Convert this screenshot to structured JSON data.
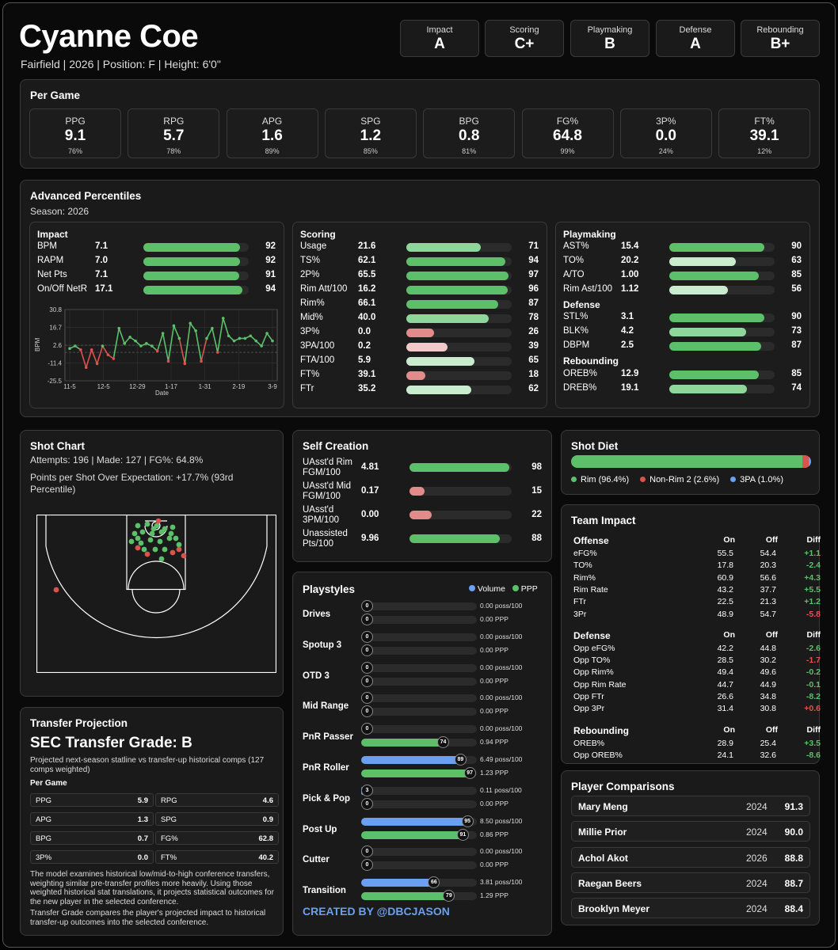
{
  "player": {
    "name": "Cyanne Coe",
    "meta": "Fairfield | 2026 | Position: F | Height: 6'0\""
  },
  "grades": [
    {
      "label": "Impact",
      "value": "A"
    },
    {
      "label": "Scoring",
      "value": "C+"
    },
    {
      "label": "Playmaking",
      "value": "B"
    },
    {
      "label": "Defense",
      "value": "A"
    },
    {
      "label": "Rebounding",
      "value": "B+"
    }
  ],
  "per_game": {
    "title": "Per Game",
    "stats": [
      {
        "label": "PPG",
        "value": "9.1",
        "pct": "76%"
      },
      {
        "label": "RPG",
        "value": "5.7",
        "pct": "78%"
      },
      {
        "label": "APG",
        "value": "1.6",
        "pct": "89%"
      },
      {
        "label": "SPG",
        "value": "1.2",
        "pct": "85%"
      },
      {
        "label": "BPG",
        "value": "0.8",
        "pct": "81%"
      },
      {
        "label": "FG%",
        "value": "64.8",
        "pct": "99%"
      },
      {
        "label": "3P%",
        "value": "0.0",
        "pct": "24%"
      },
      {
        "label": "FT%",
        "value": "39.1",
        "pct": "12%"
      }
    ]
  },
  "advanced": {
    "title": "Advanced Percentiles",
    "season": "Season: 2026",
    "impact": {
      "title": "Impact",
      "rows": [
        {
          "label": "BPM",
          "value": "7.1",
          "pct": 92
        },
        {
          "label": "RAPM",
          "value": "7.0",
          "pct": 92
        },
        {
          "label": "Net Pts",
          "value": "7.1",
          "pct": 91
        },
        {
          "label": "On/Off NetR",
          "value": "17.1",
          "pct": 94
        }
      ]
    },
    "scoring": {
      "title": "Scoring",
      "rows": [
        {
          "label": "Usage",
          "value": "21.6",
          "pct": 71
        },
        {
          "label": "TS%",
          "value": "62.1",
          "pct": 94
        },
        {
          "label": "2P%",
          "value": "65.5",
          "pct": 97
        },
        {
          "label": "Rim Att/100",
          "value": "16.2",
          "pct": 96
        },
        {
          "label": "Rim%",
          "value": "66.1",
          "pct": 87
        },
        {
          "label": "Mid%",
          "value": "40.0",
          "pct": 78
        },
        {
          "label": "3P%",
          "value": "0.0",
          "pct": 26
        },
        {
          "label": "3PA/100",
          "value": "0.2",
          "pct": 39
        },
        {
          "label": "FTA/100",
          "value": "5.9",
          "pct": 65
        },
        {
          "label": "FT%",
          "value": "39.1",
          "pct": 18
        },
        {
          "label": "FTr",
          "value": "35.2",
          "pct": 62
        }
      ]
    },
    "playmaking": {
      "title": "Playmaking",
      "rows": [
        {
          "label": "AST%",
          "value": "15.4",
          "pct": 90
        },
        {
          "label": "TO%",
          "value": "20.2",
          "pct": 63
        },
        {
          "label": "A/TO",
          "value": "1.00",
          "pct": 85
        },
        {
          "label": "Rim Ast/100",
          "value": "1.12",
          "pct": 56
        }
      ]
    },
    "defense": {
      "title": "Defense",
      "rows": [
        {
          "label": "STL%",
          "value": "3.1",
          "pct": 90
        },
        {
          "label": "BLK%",
          "value": "4.2",
          "pct": 73
        },
        {
          "label": "DBPM",
          "value": "2.5",
          "pct": 87
        }
      ]
    },
    "rebounding": {
      "title": "Rebounding",
      "rows": [
        {
          "label": "OREB%",
          "value": "12.9",
          "pct": 85
        },
        {
          "label": "DREB%",
          "value": "19.1",
          "pct": 74
        }
      ]
    }
  },
  "chart_data": {
    "type": "line",
    "xlabel": "Date",
    "ylabel": "BPM",
    "yticks": [
      "30.8",
      "16.7",
      "2.6",
      "-11.4",
      "-25.5"
    ],
    "xticks": [
      "11-5",
      "12-5",
      "12-29",
      "1-17",
      "1-31",
      "2-19",
      "3-9"
    ],
    "ylim": [
      -25.5,
      30.8
    ],
    "values": [
      0,
      2,
      -1,
      -15,
      -1,
      -12,
      2,
      -5,
      -8,
      16,
      4,
      9,
      6,
      2,
      4,
      2,
      -2,
      12,
      -10,
      18,
      8,
      -12,
      20,
      14,
      -10,
      8,
      16,
      -3,
      24,
      10,
      6,
      8,
      8,
      10,
      6,
      2,
      12,
      6
    ],
    "colors": {
      "pos": "#5cbf6a",
      "neg": "#d9534f"
    }
  },
  "shot_chart": {
    "title": "Shot Chart",
    "line1": "Attempts: 196 | Made: 127 | FG%: 64.8%",
    "line2": "Points per Shot Over Expectation: +17.7% (93rd Percentile)"
  },
  "self_creation": {
    "title": "Self Creation",
    "rows": [
      {
        "label": "UAsst'd Rim FGM/100",
        "value": "4.81",
        "pct": 98
      },
      {
        "label": "UAsst'd Mid FGM/100",
        "value": "0.17",
        "pct": 15
      },
      {
        "label": "UAsst'd 3PM/100",
        "value": "0.00",
        "pct": 22
      },
      {
        "label": "Unassisted Pts/100",
        "value": "9.96",
        "pct": 88
      }
    ]
  },
  "playstyles": {
    "title": "Playstyles",
    "legend": {
      "volume": "Volume",
      "ppp": "PPP"
    },
    "items": [
      {
        "name": "Drives",
        "vol": 0,
        "vol_txt": "0.00 poss/100",
        "ppp": 0,
        "ppp_txt": "0.00 PPP"
      },
      {
        "name": "Spotup 3",
        "vol": 0,
        "vol_txt": "0.00 poss/100",
        "ppp": 0,
        "ppp_txt": "0.00 PPP"
      },
      {
        "name": "OTD 3",
        "vol": 0,
        "vol_txt": "0.00 poss/100",
        "ppp": 0,
        "ppp_txt": "0.00 PPP"
      },
      {
        "name": "Mid Range",
        "vol": 0,
        "vol_txt": "0.00 poss/100",
        "ppp": 0,
        "ppp_txt": "0.00 PPP"
      },
      {
        "name": "PnR Passer",
        "vol": 0,
        "vol_txt": "0.00 poss/100",
        "ppp": 74,
        "ppp_txt": "0.94 PPP"
      },
      {
        "name": "PnR Roller",
        "vol": 89,
        "vol_txt": "6.49 poss/100",
        "ppp": 97,
        "ppp_txt": "1.23 PPP"
      },
      {
        "name": "Pick & Pop",
        "vol": 3,
        "vol_txt": "0.11 poss/100",
        "ppp": 0,
        "ppp_txt": "0.00 PPP"
      },
      {
        "name": "Post Up",
        "vol": 95,
        "vol_txt": "8.50 poss/100",
        "ppp": 91,
        "ppp_txt": "0.86 PPP"
      },
      {
        "name": "Cutter",
        "vol": 0,
        "vol_txt": "0.00 poss/100",
        "ppp": 0,
        "ppp_txt": "0.00 PPP"
      },
      {
        "name": "Transition",
        "vol": 66,
        "vol_txt": "3.81 poss/100",
        "ppp": 79,
        "ppp_txt": "1.29 PPP"
      }
    ],
    "credit": "CREATED BY @DBCJASON"
  },
  "shot_diet": {
    "title": "Shot Diet",
    "rim": 96.4,
    "nonrim2": 2.6,
    "three": 1.0,
    "labels": [
      "Rim (96.4%)",
      "Non-Rim 2 (2.6%)",
      "3PA (1.0%)"
    ]
  },
  "team_impact": {
    "title": "Team Impact",
    "cols": [
      "On",
      "Off",
      "Diff"
    ],
    "offense": {
      "title": "Offense",
      "rows": [
        [
          "eFG%",
          "55.5",
          "54.4",
          "+1.1",
          "g"
        ],
        [
          "TO%",
          "17.8",
          "20.3",
          "-2.4",
          "g"
        ],
        [
          "Rim%",
          "60.9",
          "56.6",
          "+4.3",
          "g"
        ],
        [
          "Rim Rate",
          "43.2",
          "37.7",
          "+5.5",
          "g"
        ],
        [
          "FTr",
          "22.5",
          "21.3",
          "+1.2",
          "g"
        ],
        [
          "3Pr",
          "48.9",
          "54.7",
          "-5.8",
          "r"
        ]
      ]
    },
    "defense": {
      "title": "Defense",
      "rows": [
        [
          "Opp eFG%",
          "42.2",
          "44.8",
          "-2.6",
          "g"
        ],
        [
          "Opp TO%",
          "28.5",
          "30.2",
          "-1.7",
          "r"
        ],
        [
          "Opp Rim%",
          "49.4",
          "49.6",
          "-0.2",
          "g"
        ],
        [
          "Opp Rim Rate",
          "44.7",
          "44.9",
          "-0.1",
          "g"
        ],
        [
          "Opp FTr",
          "26.6",
          "34.8",
          "-8.2",
          "g"
        ],
        [
          "Opp 3Pr",
          "31.4",
          "30.8",
          "+0.6",
          "r"
        ]
      ]
    },
    "rebounding": {
      "title": "Rebounding",
      "rows": [
        [
          "OREB%",
          "28.9",
          "25.4",
          "+3.5",
          "g"
        ],
        [
          "Opp OREB%",
          "24.1",
          "32.6",
          "-8.6",
          "g"
        ]
      ]
    }
  },
  "comparisons": {
    "title": "Player Comparisons",
    "items": [
      {
        "name": "Mary Meng",
        "year": "2024",
        "score": "91.3"
      },
      {
        "name": "Millie Prior",
        "year": "2024",
        "score": "90.0"
      },
      {
        "name": "Achol Akot",
        "year": "2026",
        "score": "88.8"
      },
      {
        "name": "Raegan Beers",
        "year": "2024",
        "score": "88.7"
      },
      {
        "name": "Brooklyn Meyer",
        "year": "2024",
        "score": "88.4"
      }
    ]
  },
  "transfer": {
    "title": "Transfer Projection",
    "grade": "SEC Transfer Grade: B",
    "desc": "Projected next-season statline vs transfer-up historical comps (127 comps weighted)",
    "sub": "Per Game",
    "stats": [
      [
        "PPG",
        "5.9"
      ],
      [
        "RPG",
        "4.6"
      ],
      [
        "APG",
        "1.3"
      ],
      [
        "SPG",
        "0.9"
      ],
      [
        "BPG",
        "0.7"
      ],
      [
        "FG%",
        "62.8"
      ],
      [
        "3P%",
        "0.0"
      ],
      [
        "FT%",
        "40.2"
      ]
    ],
    "note1": "The model examines historical low/mid-to-high conference transfers, weighting similar pre-transfer profiles more heavily. Using those weighted historical stat translations, it projects statistical outcomes for the new player in the selected conference.",
    "note2": "Transfer Grade compares the player's projected impact to historical transfer-up outcomes into the selected conference."
  }
}
